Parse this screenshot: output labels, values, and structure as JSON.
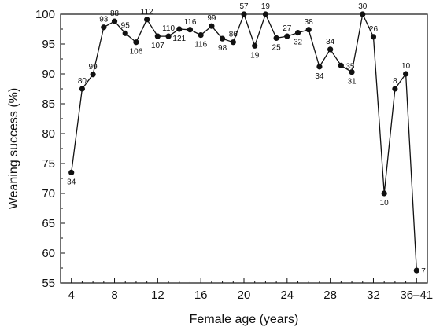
{
  "chart_data": {
    "type": "line",
    "xlabel": "Female age (years)",
    "ylabel": "Weaning success (%)",
    "xlim": [
      3,
      37
    ],
    "ylim": [
      55,
      100
    ],
    "xticks": [
      4,
      8,
      12,
      16,
      20,
      24,
      28,
      32,
      36
    ],
    "xtick_labels": [
      "4",
      "8",
      "12",
      "16",
      "20",
      "24",
      "28",
      "32",
      "36–41"
    ],
    "yticks": [
      55,
      60,
      65,
      70,
      75,
      80,
      85,
      90,
      95,
      100
    ],
    "series": [
      {
        "x": [
          4,
          5,
          6,
          7,
          8,
          9,
          10,
          11,
          12,
          13,
          14,
          15,
          16,
          17,
          18,
          19,
          20,
          21,
          22,
          23,
          24,
          25,
          26,
          27,
          28,
          29,
          30,
          31,
          32,
          33,
          34,
          35,
          36
        ],
        "y": [
          73.5,
          87.5,
          89.9,
          97.8,
          98.8,
          96.8,
          95.3,
          99.1,
          96.3,
          96.3,
          97.5,
          97.4,
          96.5,
          98.0,
          95.9,
          95.3,
          100,
          94.7,
          100,
          96.0,
          96.3,
          96.9,
          97.4,
          91.2,
          94.1,
          91.4,
          90.3,
          100,
          96.2,
          70.0,
          87.5,
          90.0,
          57.1
        ],
        "labels": [
          "34",
          "80",
          "99",
          "93",
          "88",
          "95",
          "106",
          "112",
          "107",
          "110",
          "121",
          "116",
          "116",
          "99",
          "98",
          "86",
          "57",
          "19",
          "19",
          "25",
          "27",
          "32",
          "38",
          "34",
          "34",
          "35",
          "31",
          "30",
          "26",
          "10",
          "8",
          "10",
          "7"
        ],
        "label_pos": [
          "below",
          "above",
          "above",
          "above",
          "above",
          "above",
          "below",
          "above",
          "below",
          "above",
          "below",
          "above",
          "below",
          "above",
          "below",
          "above",
          "above",
          "below",
          "above",
          "below",
          "above",
          "below",
          "above",
          "below",
          "above",
          "right",
          "below",
          "above",
          "above",
          "below",
          "above",
          "above",
          "right"
        ]
      }
    ],
    "colors": {
      "line": "#111111",
      "marker": "#111111"
    }
  }
}
